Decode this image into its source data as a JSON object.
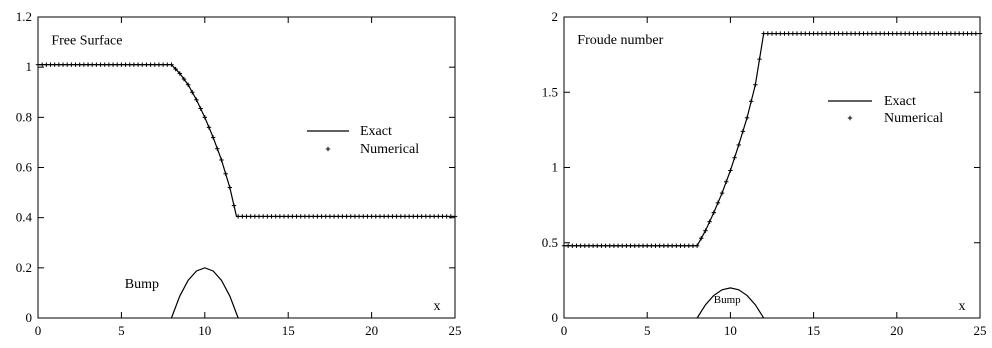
{
  "chart_data": [
    {
      "type": "line",
      "title": "",
      "xlabel": "x",
      "ylabel": "",
      "xlim": [
        0,
        25
      ],
      "ylim": [
        0,
        1.2
      ],
      "xticks": [
        0,
        5,
        10,
        15,
        20,
        25
      ],
      "yticks": [
        0,
        0.2,
        0.4,
        0.6,
        0.8,
        1,
        1.2
      ],
      "grid": false,
      "legend_position": "center-right",
      "annotations": [
        {
          "text": "Free Surface",
          "x": 0.8,
          "y": 1.09
        },
        {
          "text": "Bump",
          "x": 5.2,
          "y": 0.12
        }
      ],
      "series": [
        {
          "name": "Exact",
          "style": "line",
          "x": [
            0,
            8,
            8.5,
            9,
            9.5,
            10,
            10.5,
            11,
            11.5,
            11.9,
            12,
            25
          ],
          "y": [
            1.01,
            1.01,
            0.975,
            0.93,
            0.87,
            0.8,
            0.72,
            0.63,
            0.52,
            0.405,
            0.405,
            0.405
          ]
        },
        {
          "name": "Numerical",
          "style": "markers",
          "x": [
            0,
            8,
            8.5,
            9,
            9.5,
            10,
            10.5,
            11,
            11.5,
            11.9,
            12,
            25
          ],
          "y": [
            1.01,
            1.01,
            0.975,
            0.93,
            0.87,
            0.8,
            0.72,
            0.63,
            0.52,
            0.405,
            0.405,
            0.405
          ],
          "marker_spacing": 0.25
        },
        {
          "name": "Bump",
          "style": "line",
          "x": [
            8,
            8.5,
            9,
            9.5,
            10,
            10.5,
            11,
            11.5,
            12
          ],
          "y": [
            0,
            0.0875,
            0.15,
            0.1875,
            0.2,
            0.1875,
            0.15,
            0.0875,
            0
          ]
        }
      ]
    },
    {
      "type": "line",
      "title": "",
      "xlabel": "x",
      "ylabel": "",
      "xlim": [
        0,
        25
      ],
      "ylim": [
        0,
        2
      ],
      "xticks": [
        0,
        5,
        10,
        15,
        20,
        25
      ],
      "yticks": [
        0,
        0.5,
        1,
        1.5,
        2
      ],
      "grid": false,
      "legend_position": "center-right",
      "annotations": [
        {
          "text": "Froude number",
          "x": 0.8,
          "y": 1.82
        },
        {
          "text": "Bump",
          "x": 9.0,
          "y": 0.1
        }
      ],
      "series": [
        {
          "name": "Exact",
          "style": "line",
          "x": [
            0,
            8,
            8.5,
            9,
            9.5,
            10,
            10.5,
            11,
            11.5,
            12,
            25
          ],
          "y": [
            0.48,
            0.48,
            0.58,
            0.7,
            0.83,
            0.98,
            1.15,
            1.33,
            1.55,
            1.89,
            1.89
          ]
        },
        {
          "name": "Numerical",
          "style": "markers",
          "x": [
            0,
            8,
            8.5,
            9,
            9.5,
            10,
            10.5,
            11,
            11.5,
            12,
            25
          ],
          "y": [
            0.48,
            0.48,
            0.58,
            0.7,
            0.83,
            0.98,
            1.15,
            1.33,
            1.55,
            1.89,
            1.89
          ],
          "marker_spacing": 0.25
        },
        {
          "name": "Bump",
          "style": "line",
          "x": [
            8,
            8.5,
            9,
            9.5,
            10,
            10.5,
            11,
            11.5,
            12
          ],
          "y": [
            0,
            0.0875,
            0.15,
            0.1875,
            0.2,
            0.1875,
            0.15,
            0.0875,
            0
          ]
        }
      ]
    }
  ]
}
